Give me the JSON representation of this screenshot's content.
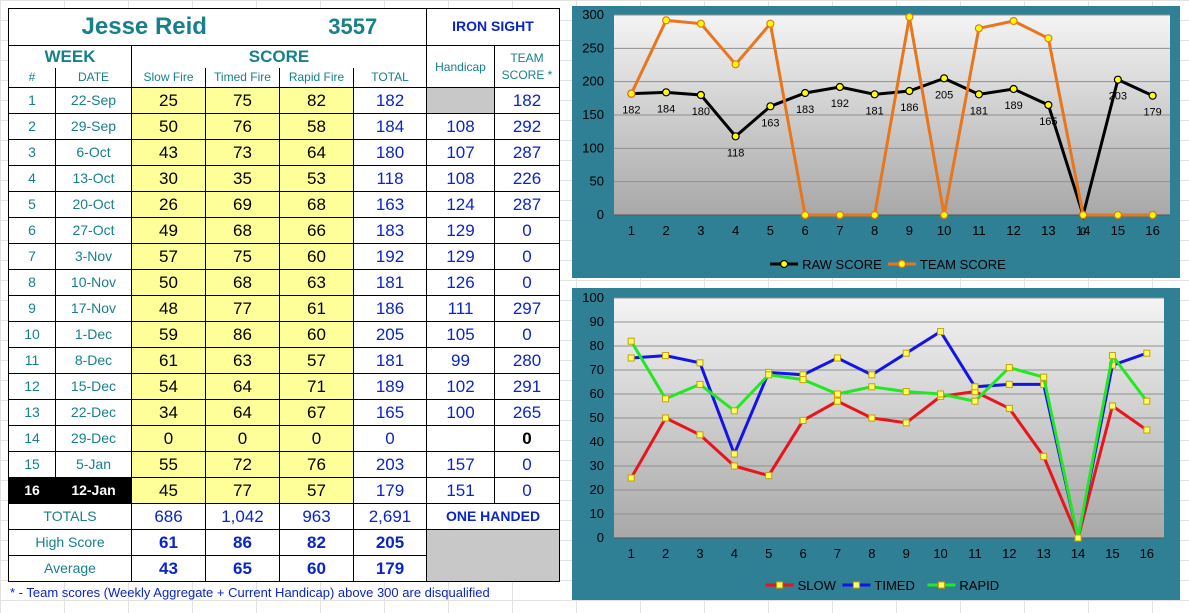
{
  "header": {
    "name": "Jesse Reid",
    "id": "3557",
    "team": "IRON SIGHT"
  },
  "columns": {
    "week": "WEEK",
    "score": "SCORE",
    "num": "#",
    "date": "DATE",
    "slow": "Slow Fire",
    "timed": "Timed Fire",
    "rapid": "Rapid Fire",
    "total": "TOTAL",
    "handicap": "Handicap",
    "team_score_1": "TEAM",
    "team_score_2": "SCORE *"
  },
  "rows": [
    {
      "n": "1",
      "date": "22-Sep",
      "slow": "25",
      "timed": "75",
      "rapid": "82",
      "total": "182",
      "handicap": "",
      "team": "182"
    },
    {
      "n": "2",
      "date": "29-Sep",
      "slow": "50",
      "timed": "76",
      "rapid": "58",
      "total": "184",
      "handicap": "108",
      "team": "292"
    },
    {
      "n": "3",
      "date": "6-Oct",
      "slow": "43",
      "timed": "73",
      "rapid": "64",
      "total": "180",
      "handicap": "107",
      "team": "287"
    },
    {
      "n": "4",
      "date": "13-Oct",
      "slow": "30",
      "timed": "35",
      "rapid": "53",
      "total": "118",
      "handicap": "108",
      "team": "226"
    },
    {
      "n": "5",
      "date": "20-Oct",
      "slow": "26",
      "timed": "69",
      "rapid": "68",
      "total": "163",
      "handicap": "124",
      "team": "287"
    },
    {
      "n": "6",
      "date": "27-Oct",
      "slow": "49",
      "timed": "68",
      "rapid": "66",
      "total": "183",
      "handicap": "129",
      "team": "0"
    },
    {
      "n": "7",
      "date": "3-Nov",
      "slow": "57",
      "timed": "75",
      "rapid": "60",
      "total": "192",
      "handicap": "129",
      "team": "0"
    },
    {
      "n": "8",
      "date": "10-Nov",
      "slow": "50",
      "timed": "68",
      "rapid": "63",
      "total": "181",
      "handicap": "126",
      "team": "0"
    },
    {
      "n": "9",
      "date": "17-Nov",
      "slow": "48",
      "timed": "77",
      "rapid": "61",
      "total": "186",
      "handicap": "111",
      "team": "297"
    },
    {
      "n": "10",
      "date": "1-Dec",
      "slow": "59",
      "timed": "86",
      "rapid": "60",
      "total": "205",
      "handicap": "105",
      "team": "0"
    },
    {
      "n": "11",
      "date": "8-Dec",
      "slow": "61",
      "timed": "63",
      "rapid": "57",
      "total": "181",
      "handicap": "99",
      "team": "280"
    },
    {
      "n": "12",
      "date": "15-Dec",
      "slow": "54",
      "timed": "64",
      "rapid": "71",
      "total": "189",
      "handicap": "102",
      "team": "291"
    },
    {
      "n": "13",
      "date": "22-Dec",
      "slow": "34",
      "timed": "64",
      "rapid": "67",
      "total": "165",
      "handicap": "100",
      "team": "265"
    },
    {
      "n": "14",
      "date": "29-Dec",
      "slow": "0",
      "timed": "0",
      "rapid": "0",
      "total": "0",
      "handicap": "",
      "team": "0"
    },
    {
      "n": "15",
      "date": "5-Jan",
      "slow": "55",
      "timed": "72",
      "rapid": "76",
      "total": "203",
      "handicap": "157",
      "team": "0"
    },
    {
      "n": "16",
      "date": "12-Jan",
      "slow": "45",
      "timed": "77",
      "rapid": "57",
      "total": "179",
      "handicap": "151",
      "team": "0"
    }
  ],
  "totals": {
    "label": "TOTALS",
    "slow": "686",
    "timed": "1,042",
    "rapid": "963",
    "total": "2,691",
    "note": "ONE HANDED"
  },
  "high": {
    "label": "High Score",
    "slow": "61",
    "timed": "86",
    "rapid": "82",
    "total": "205"
  },
  "average": {
    "label": "Average",
    "slow": "43",
    "timed": "65",
    "rapid": "60",
    "total": "179"
  },
  "footnote": "* - Team scores (Weekly Aggregate + Current Handicap) above 300 are disqualified",
  "chart_data": [
    {
      "type": "line",
      "x": [
        1,
        2,
        3,
        4,
        5,
        6,
        7,
        8,
        9,
        10,
        11,
        12,
        13,
        14,
        15,
        16
      ],
      "ylim": [
        0,
        300
      ],
      "yticks": [
        0,
        50,
        100,
        150,
        200,
        250,
        300
      ],
      "grid": true,
      "legend": "bottom",
      "series": [
        {
          "name": "RAW SCORE",
          "color": "#000000",
          "values": [
            182,
            184,
            180,
            118,
            163,
            183,
            192,
            181,
            186,
            205,
            181,
            189,
            165,
            0,
            203,
            179
          ],
          "labels": [
            "182",
            "184",
            "180",
            "118",
            "163",
            "183",
            "192",
            "181",
            "186",
            "205",
            "181",
            "189",
            "165",
            "0",
            "203",
            "179"
          ]
        },
        {
          "name": "TEAM SCORE",
          "color": "#e8761c",
          "values": [
            182,
            292,
            287,
            226,
            287,
            0,
            0,
            0,
            297,
            0,
            280,
            291,
            265,
            0,
            0,
            0
          ]
        }
      ]
    },
    {
      "type": "line",
      "x": [
        1,
        2,
        3,
        4,
        5,
        6,
        7,
        8,
        9,
        10,
        11,
        12,
        13,
        14,
        15,
        16
      ],
      "ylim": [
        0,
        100
      ],
      "yticks": [
        0,
        10,
        20,
        30,
        40,
        50,
        60,
        70,
        80,
        90,
        100
      ],
      "grid": true,
      "legend": "bottom",
      "series": [
        {
          "name": "SLOW",
          "color": "#e8161c",
          "values": [
            25,
            50,
            43,
            30,
            26,
            49,
            57,
            50,
            48,
            59,
            61,
            54,
            34,
            0,
            55,
            45
          ]
        },
        {
          "name": "TIMED",
          "color": "#1414e8",
          "values": [
            75,
            76,
            73,
            35,
            69,
            68,
            75,
            68,
            77,
            86,
            63,
            64,
            64,
            0,
            72,
            77
          ]
        },
        {
          "name": "RAPID",
          "color": "#22e822",
          "values": [
            82,
            58,
            64,
            53,
            68,
            66,
            60,
            63,
            61,
            60,
            57,
            71,
            67,
            0,
            76,
            57
          ]
        }
      ]
    }
  ]
}
